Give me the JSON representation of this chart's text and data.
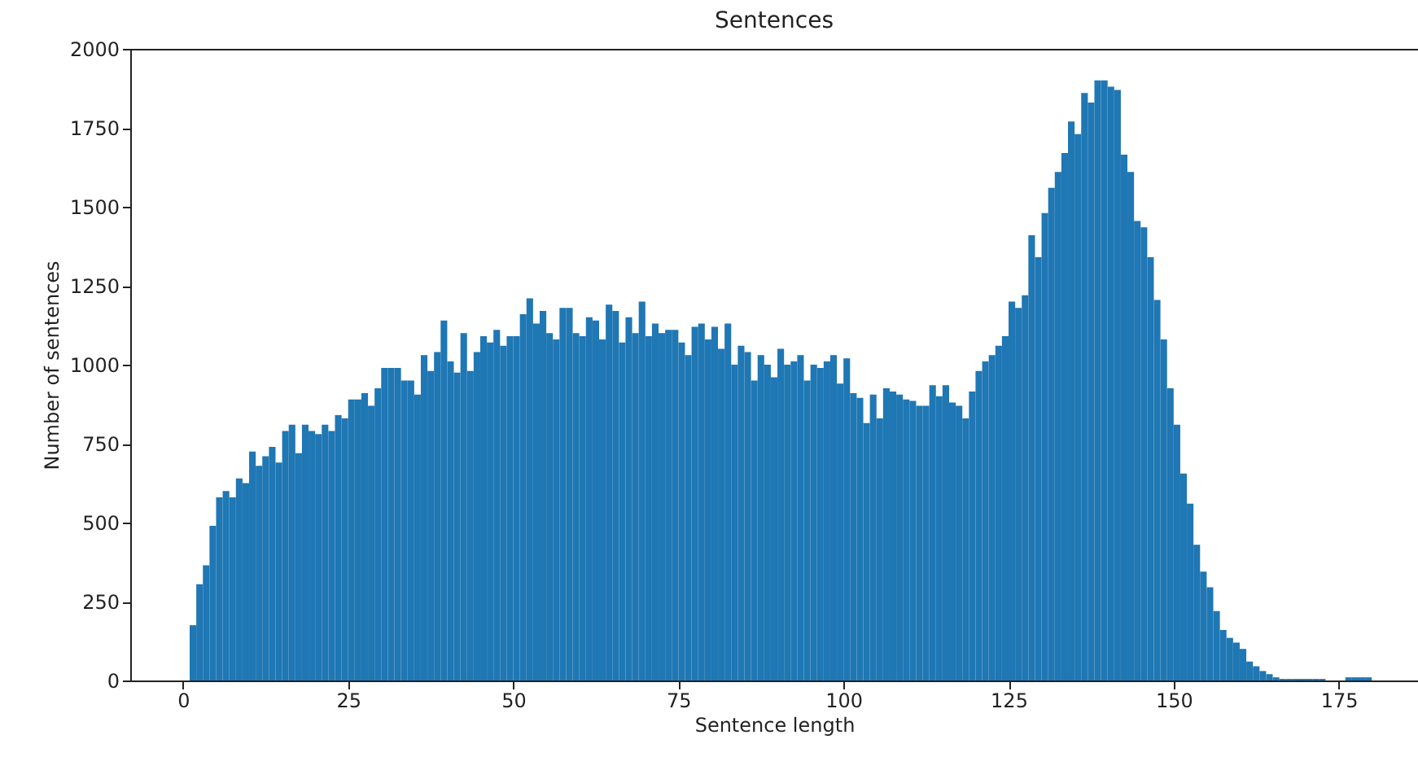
{
  "chart_data": {
    "type": "histogram",
    "title": "Sentences",
    "xlabel": "Sentence length",
    "ylabel": "Number of sentences",
    "bins": [
      1,
      2,
      3,
      4,
      5,
      6,
      7,
      8,
      9,
      10,
      11,
      12,
      13,
      14,
      15,
      16,
      17,
      18,
      19,
      20,
      21,
      22,
      23,
      24,
      25,
      26,
      27,
      28,
      29,
      30,
      31,
      32,
      33,
      34,
      35,
      36,
      37,
      38,
      39,
      40,
      41,
      42,
      43,
      44,
      45,
      46,
      47,
      48,
      49,
      50,
      51,
      52,
      53,
      54,
      55,
      56,
      57,
      58,
      59,
      60,
      61,
      62,
      63,
      64,
      65,
      66,
      67,
      68,
      69,
      70,
      71,
      72,
      73,
      74,
      75,
      76,
      77,
      78,
      79,
      80,
      81,
      82,
      83,
      84,
      85,
      86,
      87,
      88,
      89,
      90,
      91,
      92,
      93,
      94,
      95,
      96,
      97,
      98,
      99,
      100,
      101,
      102,
      103,
      104,
      105,
      106,
      107,
      108,
      109,
      110,
      111,
      112,
      113,
      114,
      115,
      116,
      117,
      118,
      119,
      120,
      121,
      122,
      123,
      124,
      125,
      126,
      127,
      128,
      129,
      130,
      131,
      132,
      133,
      134,
      135,
      136,
      137,
      138,
      139,
      140,
      141,
      142,
      143,
      144,
      145,
      146,
      147,
      148,
      149,
      150,
      151,
      152,
      153,
      154,
      155,
      156,
      157,
      158,
      159,
      160,
      161,
      162,
      163,
      164,
      165,
      166,
      167,
      168,
      169,
      170,
      171,
      172,
      173,
      176,
      177,
      178,
      179,
      180
    ],
    "values": [
      175,
      305,
      365,
      490,
      580,
      600,
      580,
      640,
      625,
      725,
      680,
      710,
      740,
      690,
      790,
      810,
      720,
      810,
      790,
      780,
      810,
      790,
      840,
      830,
      890,
      890,
      910,
      870,
      925,
      990,
      990,
      990,
      950,
      950,
      905,
      1030,
      980,
      1040,
      1140,
      1010,
      975,
      1100,
      980,
      1040,
      1090,
      1070,
      1110,
      1060,
      1090,
      1090,
      1160,
      1210,
      1130,
      1170,
      1100,
      1080,
      1180,
      1180,
      1100,
      1090,
      1150,
      1140,
      1080,
      1190,
      1170,
      1070,
      1150,
      1100,
      1200,
      1090,
      1130,
      1100,
      1110,
      1110,
      1070,
      1030,
      1120,
      1130,
      1080,
      1120,
      1050,
      1130,
      1000,
      1060,
      1040,
      950,
      1030,
      1000,
      960,
      1050,
      1000,
      1010,
      1030,
      950,
      1000,
      990,
      1010,
      1030,
      940,
      1020,
      910,
      895,
      815,
      905,
      830,
      925,
      915,
      905,
      890,
      885,
      870,
      870,
      935,
      900,
      935,
      880,
      870,
      830,
      915,
      980,
      1010,
      1030,
      1060,
      1090,
      1200,
      1180,
      1220,
      1410,
      1340,
      1480,
      1560,
      1610,
      1670,
      1770,
      1730,
      1860,
      1830,
      1900,
      1900,
      1880,
      1870,
      1665,
      1610,
      1455,
      1435,
      1340,
      1205,
      1080,
      925,
      810,
      655,
      560,
      430,
      345,
      295,
      220,
      160,
      135,
      120,
      100,
      60,
      45,
      30,
      20,
      10,
      5,
      5,
      5,
      5,
      5,
      5,
      5,
      0,
      10,
      10,
      10,
      10
    ],
    "color": "#1f77b4",
    "xlim": [
      -8,
      187
    ],
    "ylim": [
      0,
      2000
    ],
    "xticks": [
      0,
      25,
      50,
      75,
      100,
      125,
      150,
      175
    ],
    "yticks": [
      0,
      250,
      500,
      750,
      1000,
      1250,
      1500,
      1750,
      2000
    ],
    "grid": false
  }
}
